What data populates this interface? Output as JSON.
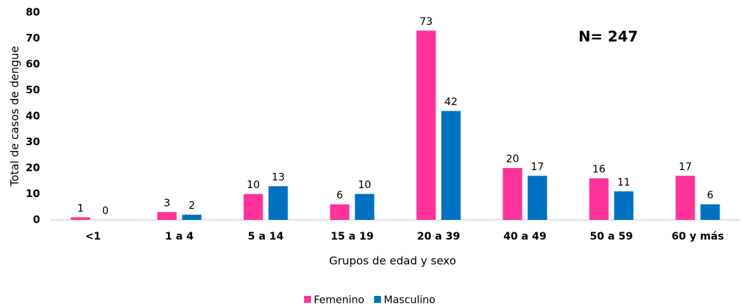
{
  "chart_data": {
    "type": "bar",
    "annotation": "N= 247",
    "xlabel": "Grupos de edad y sexo",
    "ylabel": "Total de casos de dengue",
    "categories": [
      "<1",
      "1 a 4",
      "5 a 14",
      "15 a 19",
      "20 a 39",
      "40 a 49",
      "50 a 59",
      "60 y más"
    ],
    "series": [
      {
        "name": "Femenino",
        "color": "#ff3399",
        "values": [
          1,
          3,
          10,
          6,
          73,
          20,
          16,
          17
        ]
      },
      {
        "name": "Masculino",
        "color": "#0070c0",
        "values": [
          0,
          2,
          13,
          10,
          42,
          17,
          11,
          6
        ]
      }
    ],
    "ylim": [
      0,
      80
    ],
    "yticks": [
      0,
      10,
      20,
      30,
      40,
      50,
      60,
      70,
      80
    ],
    "grid": false,
    "legend": "bottom"
  }
}
